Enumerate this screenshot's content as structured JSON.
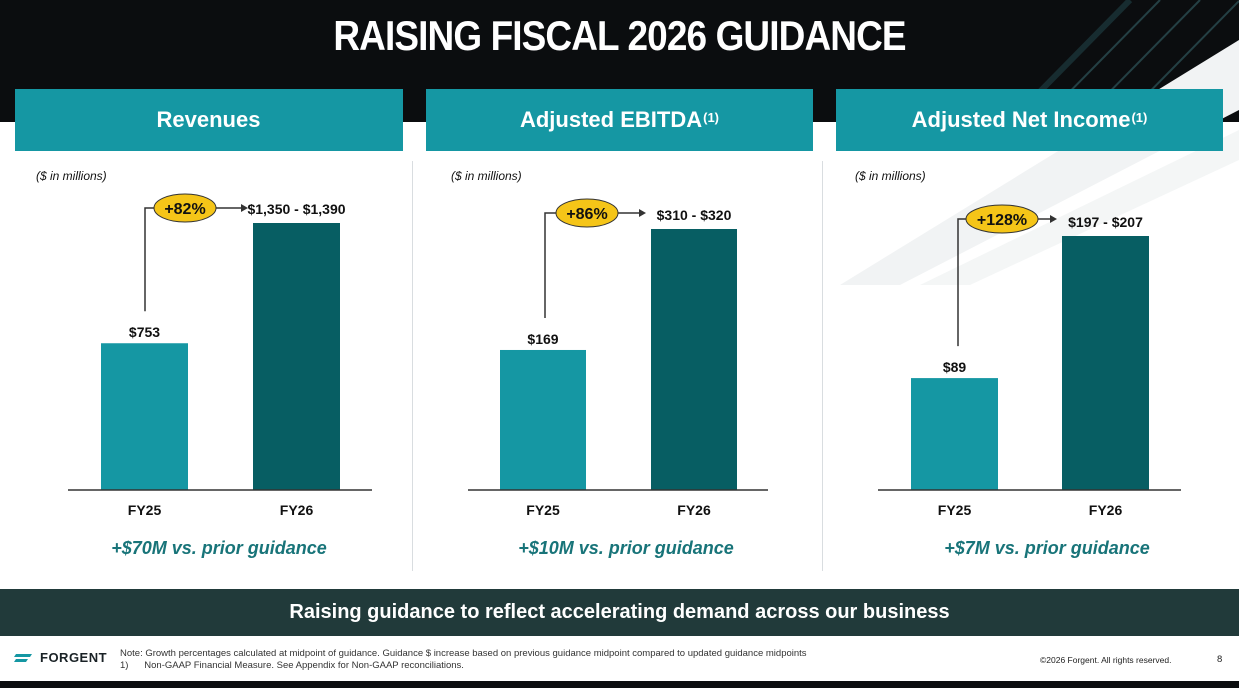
{
  "title": "RAISING FISCAL 2026 GUIDANCE",
  "panels": [
    {
      "header": "Revenues",
      "superscript": "",
      "unit_note": "($ in millions)",
      "prior_guidance": "+$70M vs. prior guidance"
    },
    {
      "header": "Adjusted EBITDA",
      "superscript": "(1)",
      "unit_note": "($ in millions)",
      "prior_guidance": "+$10M vs. prior guidance"
    },
    {
      "header": "Adjusted Net Income",
      "superscript": "(1)",
      "unit_note": "($ in millions)",
      "prior_guidance": "+$7M vs. prior guidance"
    }
  ],
  "chart_data": [
    {
      "type": "bar",
      "title": "Revenues",
      "unit": "($ in millions)",
      "categories": [
        "FY25",
        "FY26"
      ],
      "values": [
        753,
        1370
      ],
      "data_labels": [
        "$753",
        "$1,350 - $1,390"
      ],
      "growth": "+82%",
      "ylim": [
        0,
        1400
      ],
      "colors": [
        "#1597a3",
        "#075e63"
      ]
    },
    {
      "type": "bar",
      "title": "Adjusted EBITDA",
      "unit": "($ in millions)",
      "categories": [
        "FY25",
        "FY26"
      ],
      "values": [
        169,
        315
      ],
      "data_labels": [
        "$169",
        "$310 - $320"
      ],
      "growth": "+86%",
      "ylim": [
        0,
        340
      ],
      "colors": [
        "#1597a3",
        "#075e63"
      ]
    },
    {
      "type": "bar",
      "title": "Adjusted Net Income",
      "unit": "($ in millions)",
      "categories": [
        "FY25",
        "FY26"
      ],
      "values": [
        89,
        202
      ],
      "data_labels": [
        "$89",
        "$197 - $207"
      ],
      "growth": "+128%",
      "ylim": [
        0,
        225
      ],
      "colors": [
        "#1597a3",
        "#075e63"
      ]
    }
  ],
  "banner": "Raising guidance to reflect accelerating demand across our business",
  "footer": {
    "logo_text": "FORGENT",
    "note_line1": "Note: Growth percentages calculated at midpoint of guidance. Guidance $ increase based on previous guidance midpoint compared to updated guidance midpoints",
    "note_line2": "1)      Non-GAAP Financial Measure. See Appendix for Non-GAAP reconciliations.",
    "copyright": "©2026 Forgent. All rights reserved.",
    "page_number": "8"
  },
  "colors": {
    "accent": "#1597a3",
    "dark_teal": "#075e63",
    "badge": "#f5c518",
    "banner": "#213a3a",
    "text_teal": "#187479"
  }
}
